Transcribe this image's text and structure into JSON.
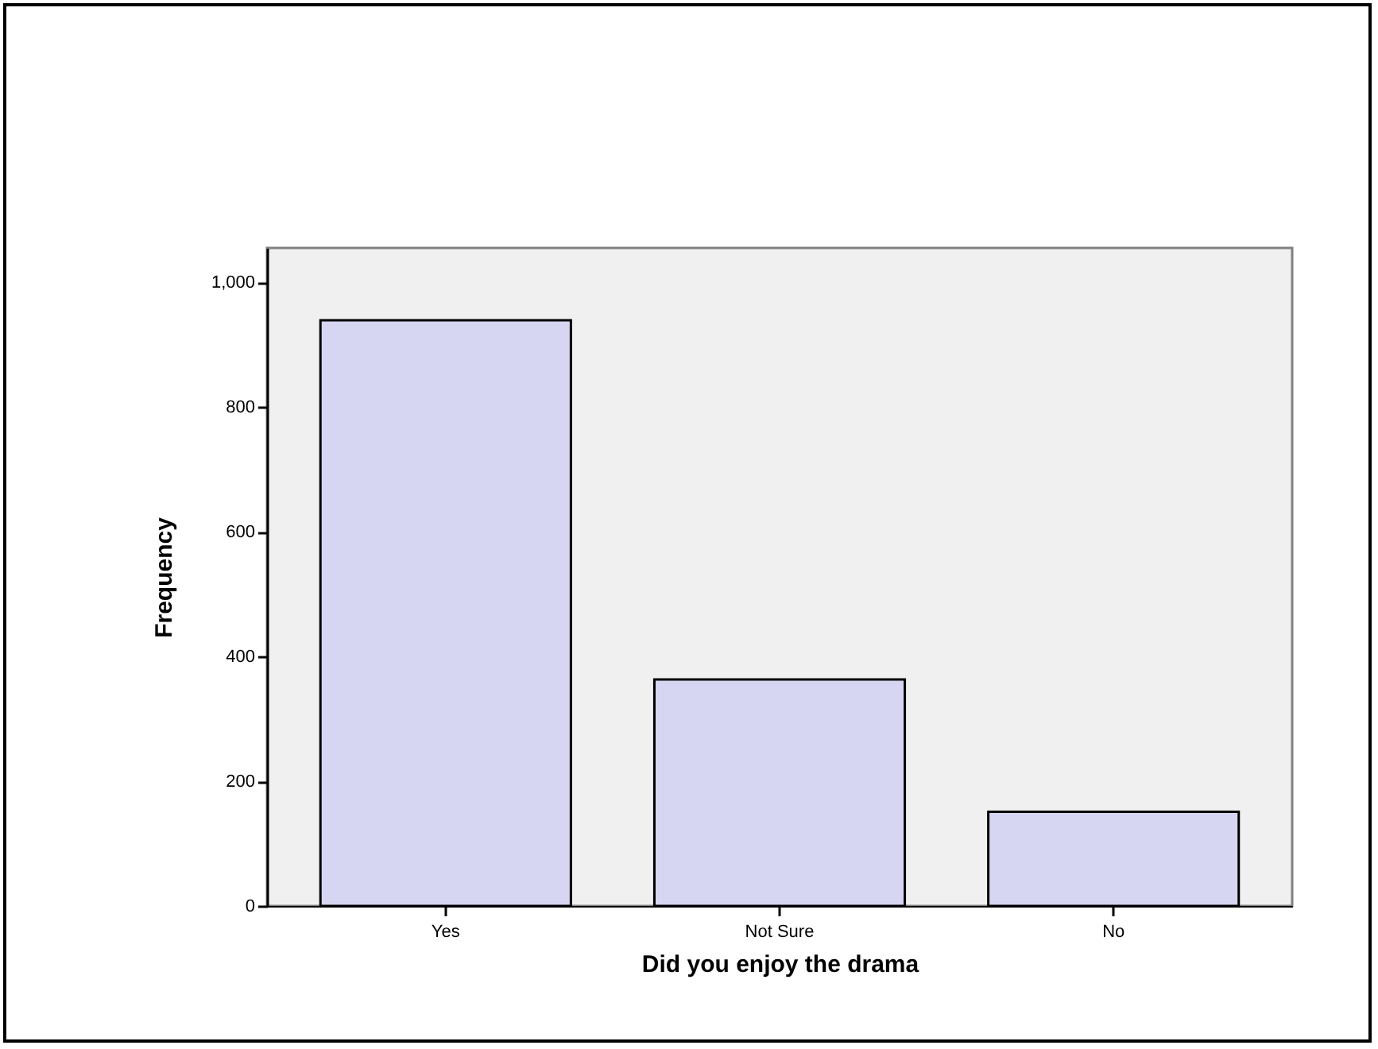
{
  "chart_data": {
    "type": "bar",
    "xlabel": "Did you enjoy the drama",
    "ylabel": "Frequency",
    "categories": [
      "Yes",
      "Not Sure",
      "No"
    ],
    "values": [
      939,
      363,
      151
    ],
    "color": "#d6d6f2",
    "ylim": [
      0,
      1055
    ],
    "yticks": [
      0,
      {
        "value": 200,
        "label": "200"
      },
      {
        "value": 400,
        "label": "400"
      },
      {
        "value": 600,
        "label": "600"
      },
      {
        "value": 800,
        "label": "800"
      },
      {
        "value": 1000,
        "label": "1,000"
      }
    ],
    "grid": false
  }
}
